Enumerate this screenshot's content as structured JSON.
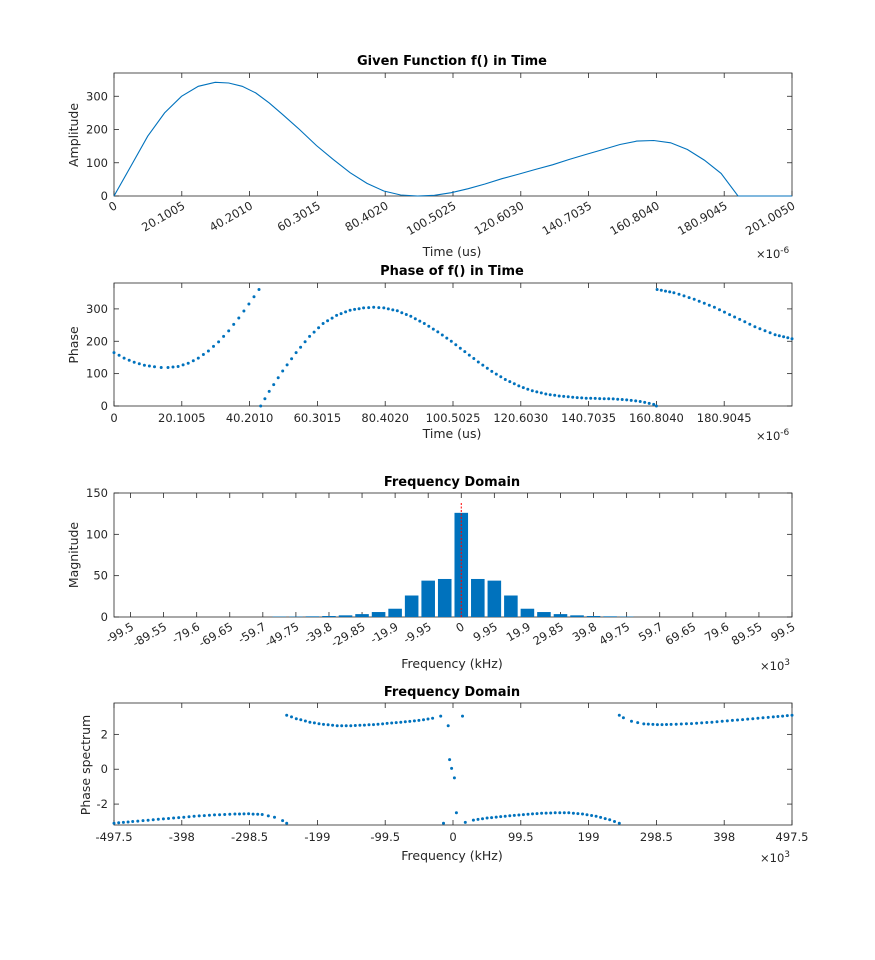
{
  "colors": {
    "series": "#0072BD",
    "axes": "#262626",
    "marker_line": "#ff0000",
    "background": "#ffffff"
  },
  "chart_data": [
    {
      "type": "line",
      "title": "Given Function f() in Time",
      "xlabel": "Time (us)",
      "ylabel": "Amplitude",
      "x_multiplier": "×10",
      "x_multiplier_exp": "-6",
      "xlim": [
        0,
        201.005
      ],
      "ylim": [
        0,
        370
      ],
      "x_ticks": [
        "0",
        "20.1005",
        "40.2010",
        "60.3015",
        "80.4020",
        "100.5025",
        "120.6030",
        "140.7035",
        "160.8040",
        "180.9045",
        "201.0050"
      ],
      "y_ticks": [
        "0",
        "100",
        "200",
        "300"
      ],
      "x_tick_values": [
        0,
        20.1005,
        40.201,
        60.3015,
        80.402,
        100.5025,
        120.603,
        140.7035,
        160.804,
        180.9045,
        201.005
      ],
      "y_tick_values": [
        0,
        100,
        200,
        300
      ],
      "series": [
        {
          "x": [
            0,
            5,
            10,
            15,
            20,
            25,
            30,
            34,
            38,
            42,
            46,
            50,
            55,
            60,
            65,
            70,
            75,
            80,
            85,
            90,
            95,
            100,
            105,
            110,
            115,
            120,
            125,
            130,
            135,
            140,
            145,
            150,
            155,
            160,
            165,
            170,
            175,
            180,
            185,
            190,
            195,
            201
          ],
          "y": [
            0,
            90,
            180,
            250,
            300,
            330,
            342,
            340,
            330,
            310,
            280,
            245,
            200,
            152,
            110,
            70,
            38,
            15,
            3,
            0,
            2,
            10,
            22,
            36,
            52,
            66,
            80,
            94,
            110,
            125,
            140,
            155,
            165,
            167,
            160,
            140,
            108,
            68,
            0,
            0,
            0,
            0
          ]
        }
      ]
    },
    {
      "type": "scatter",
      "title": "Phase of f() in Time",
      "xlabel": "Time (us)",
      "ylabel": "Phase",
      "x_multiplier": "×10",
      "x_multiplier_exp": "-6",
      "xlim": [
        0,
        201.005
      ],
      "ylim": [
        0,
        380
      ],
      "x_ticks": [
        "0",
        "20.1005",
        "40.2010",
        "60.3015",
        "80.4020",
        "100.5025",
        "120.6030",
        "140.7035",
        "160.8040",
        "180.9045"
      ],
      "y_ticks": [
        "0",
        "100",
        "200",
        "300"
      ],
      "x_tick_values": [
        0,
        20.1005,
        40.201,
        60.3015,
        80.402,
        100.5025,
        120.603,
        140.7035,
        160.804,
        180.9045
      ],
      "y_tick_values": [
        0,
        100,
        200,
        300
      ],
      "series": [
        {
          "x": [
            0,
            3,
            6,
            9,
            12,
            14,
            16,
            19,
            22,
            25,
            28,
            31,
            34,
            37,
            40,
            43,
            43.5,
            46,
            50,
            54,
            58,
            62,
            66,
            70,
            74,
            77,
            80,
            84,
            88,
            92,
            96,
            100,
            104,
            108,
            112,
            116,
            120,
            124,
            128,
            132,
            136,
            140,
            144,
            148,
            152,
            156,
            160,
            160.8,
            161,
            166,
            172,
            178,
            184,
            190,
            196,
            201
          ],
          "y": [
            165,
            148,
            135,
            126,
            121,
            119,
            119,
            122,
            132,
            148,
            170,
            198,
            232,
            272,
            315,
            360,
            0,
            45,
            108,
            165,
            215,
            255,
            280,
            296,
            303,
            305,
            303,
            294,
            277,
            255,
            229,
            200,
            168,
            136,
            107,
            82,
            62,
            47,
            37,
            31,
            27,
            24,
            23,
            22,
            19,
            14,
            5,
            0,
            360,
            350,
            330,
            305,
            275,
            245,
            220,
            208
          ]
        }
      ]
    },
    {
      "type": "bar",
      "title": "Frequency Domain",
      "xlabel": "Frequency (kHz)",
      "ylabel": "Magnitude",
      "x_multiplier": "×10",
      "x_multiplier_exp": "3",
      "xlim": [
        -104.475,
        99.5
      ],
      "ylim": [
        0,
        150
      ],
      "x_ticks": [
        "-99.5",
        "-89.55",
        "-79.6",
        "-69.65",
        "-59.7",
        "-49.75",
        "-39.8",
        "-29.85",
        "-19.9",
        "-9.95",
        "0",
        "9.95",
        "19.9",
        "29.85",
        "39.8",
        "49.75",
        "59.7",
        "69.65",
        "79.6",
        "89.55",
        "99.5"
      ],
      "y_ticks": [
        "0",
        "50",
        "100",
        "150"
      ],
      "x_tick_values": [
        -99.5,
        -89.55,
        -79.6,
        -69.65,
        -59.7,
        -49.75,
        -39.8,
        -29.85,
        -19.9,
        -9.95,
        0,
        9.95,
        19.9,
        29.85,
        39.8,
        49.75,
        59.7,
        69.65,
        79.6,
        89.55,
        99.5
      ],
      "y_tick_values": [
        0,
        50,
        100,
        150
      ],
      "categories": [
        -54.725,
        -49.75,
        -44.775,
        -39.8,
        -34.825,
        -29.85,
        -24.875,
        -19.9,
        -14.925,
        -9.95,
        -4.975,
        0,
        4.975,
        9.95,
        14.925,
        19.9,
        24.875,
        29.85,
        34.825,
        39.8,
        44.775,
        49.75
      ],
      "values": [
        0.5,
        0.5,
        0.8,
        1.2,
        2,
        3.5,
        6,
        10,
        26,
        44,
        46,
        126,
        46,
        44,
        26,
        10,
        6,
        3.5,
        2,
        1.2,
        0.8,
        0.5
      ],
      "marker_x": 0
    },
    {
      "type": "scatter",
      "title": "Frequency Domain",
      "xlabel": "Frequency (kHz)",
      "ylabel": "Phase spectrum",
      "x_multiplier": "×10",
      "x_multiplier_exp": "3",
      "xlim": [
        -497.5,
        497.5
      ],
      "ylim": [
        -3.2,
        3.8
      ],
      "x_ticks": [
        "-497.5",
        "-398",
        "-298.5",
        "-199",
        "-99.5",
        "0",
        "99.5",
        "199",
        "298.5",
        "398",
        "497.5"
      ],
      "y_ticks": [
        "-2",
        "0",
        "2"
      ],
      "x_tick_values": [
        -497.5,
        -398,
        -298.5,
        -199,
        -99.5,
        0,
        99.5,
        199,
        298.5,
        398,
        497.5
      ],
      "y_tick_values": [
        -2,
        0,
        2
      ],
      "series": [
        {
          "x": [
            -497.5,
            -470,
            -440,
            -410,
            -380,
            -350,
            -320,
            -300,
            -280,
            -262,
            -250,
            -244,
            -244,
            -230,
            -210,
            -190,
            -170,
            -150,
            -130,
            -110,
            -90,
            -70,
            -50,
            -30,
            -18,
            -14,
            -7,
            -5,
            -2,
            2,
            5,
            14,
            18,
            30,
            50,
            70,
            90,
            110,
            130,
            150,
            170,
            190,
            210,
            230,
            244,
            244,
            250,
            262,
            280,
            300,
            320,
            350,
            380,
            410,
            440,
            470,
            497.5
          ],
          "y": [
            -3.1,
            -3.0,
            -2.9,
            -2.8,
            -2.7,
            -2.62,
            -2.57,
            -2.56,
            -2.6,
            -2.75,
            -2.95,
            -3.1,
            3.1,
            2.9,
            2.7,
            2.57,
            2.5,
            2.5,
            2.53,
            2.58,
            2.65,
            2.72,
            2.8,
            2.92,
            3.05,
            -3.1,
            2.5,
            0.55,
            0.05,
            -0.5,
            -2.5,
            3.05,
            -3.05,
            -2.92,
            -2.8,
            -2.72,
            -2.65,
            -2.58,
            -2.53,
            -2.5,
            -2.5,
            -2.57,
            -2.7,
            -2.9,
            -3.1,
            3.1,
            2.95,
            2.75,
            2.6,
            2.56,
            2.57,
            2.62,
            2.7,
            2.8,
            2.9,
            3.0,
            3.1
          ]
        }
      ]
    }
  ]
}
